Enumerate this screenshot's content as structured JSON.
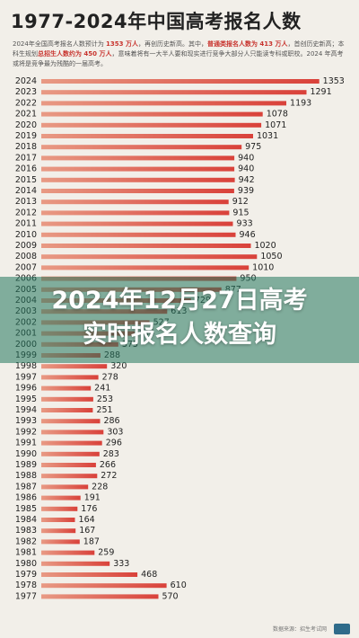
{
  "chart_data": {
    "type": "bar",
    "orientation": "horizontal",
    "title": "1977-2024年中国高考报名人数",
    "categories": [
      "2024",
      "2023",
      "2022",
      "2021",
      "2020",
      "2019",
      "2018",
      "2017",
      "2016",
      "2015",
      "2014",
      "2013",
      "2012",
      "2011",
      "2010",
      "2009",
      "2008",
      "2007",
      "2006",
      "2005",
      "2004",
      "2003",
      "2002",
      "2001",
      "2000",
      "1999",
      "1998",
      "1997",
      "1996",
      "1995",
      "1994",
      "1993",
      "1992",
      "1991",
      "1990",
      "1989",
      "1988",
      "1987",
      "1986",
      "1985",
      "1984",
      "1983",
      "1982",
      "1981",
      "1980",
      "1979",
      "1978",
      "1977"
    ],
    "values": [
      1353,
      1291,
      1193,
      1078,
      1071,
      1031,
      975,
      940,
      940,
      942,
      939,
      912,
      915,
      933,
      946,
      1020,
      1050,
      1010,
      950,
      877,
      729,
      613,
      527,
      454,
      375,
      288,
      320,
      278,
      241,
      253,
      251,
      286,
      303,
      296,
      283,
      266,
      272,
      228,
      191,
      176,
      164,
      167,
      187,
      259,
      333,
      468,
      610,
      570
    ],
    "labels": [
      "1353",
      "1291",
      "1193",
      "1078",
      "1071",
      "1031",
      "975",
      "940",
      "940",
      "942",
      "939",
      "912",
      "915",
      "933",
      "946",
      "1020",
      "1050",
      "1010",
      "950",
      "877",
      "729",
      "613",
      "527",
      "454",
      "375",
      "288",
      "320",
      "278",
      "241",
      "253",
      "251",
      "286",
      "303",
      "296",
      "283",
      "266",
      "272",
      "228",
      "191",
      "176",
      "164",
      "167",
      "187",
      "259",
      "333",
      "468",
      "610",
      "570"
    ],
    "xlim": [
      0,
      1420
    ],
    "grid": false,
    "colors": {
      "bar": "#d9413a",
      "bar_light": "#e89a84",
      "label": "#222222",
      "year": "#222222"
    }
  },
  "header": {
    "desc_part1": "2024年全国高考报名人数预计为 ",
    "desc_hl1": "1353 万人",
    "desc_part2": "，再创历史新高。其中，",
    "desc_hl2": "普通类报名人数为 413 万人",
    "desc_part3": "，首创历史新高；本科生规划",
    "desc_hl3": "总招生人数约为 450 万人",
    "desc_part4": "，意味着将有一大半人要和现实进行竞争大部分人只能读专科或职校。2024 年高考或将是竞争最为残酷的一届高考。"
  },
  "overlay": {
    "line1": "2024年12月27日高考",
    "line2": "实时报名人数查询"
  },
  "footer": {
    "source": "数据来源：招生考试网"
  }
}
